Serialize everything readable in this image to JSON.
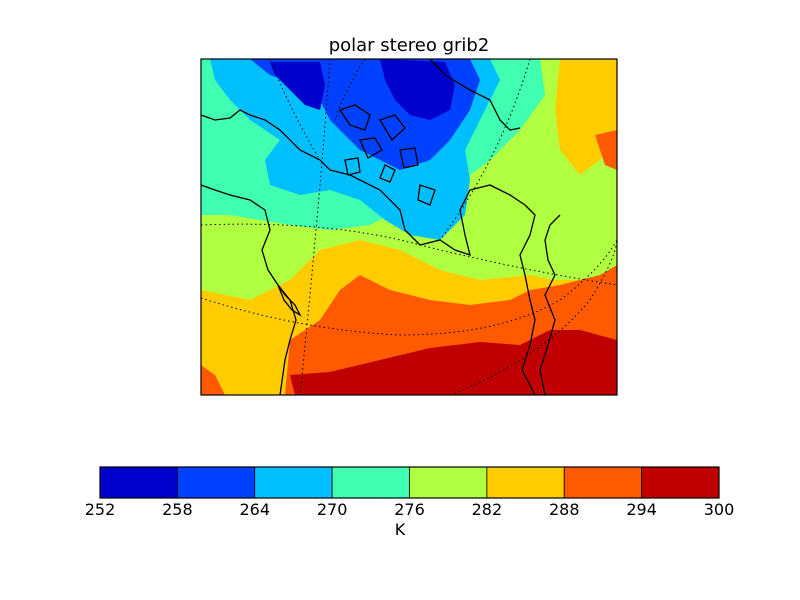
{
  "title": "polar stereo grib2",
  "colorbar": {
    "unit": "K",
    "ticks": [
      "252",
      "258",
      "264",
      "270",
      "276",
      "282",
      "288",
      "294",
      "300"
    ],
    "colors": [
      "#0000cd",
      "#0040ff",
      "#00bfff",
      "#40ffb0",
      "#b0ff40",
      "#ffcc00",
      "#ff5a00",
      "#c00000"
    ]
  }
}
